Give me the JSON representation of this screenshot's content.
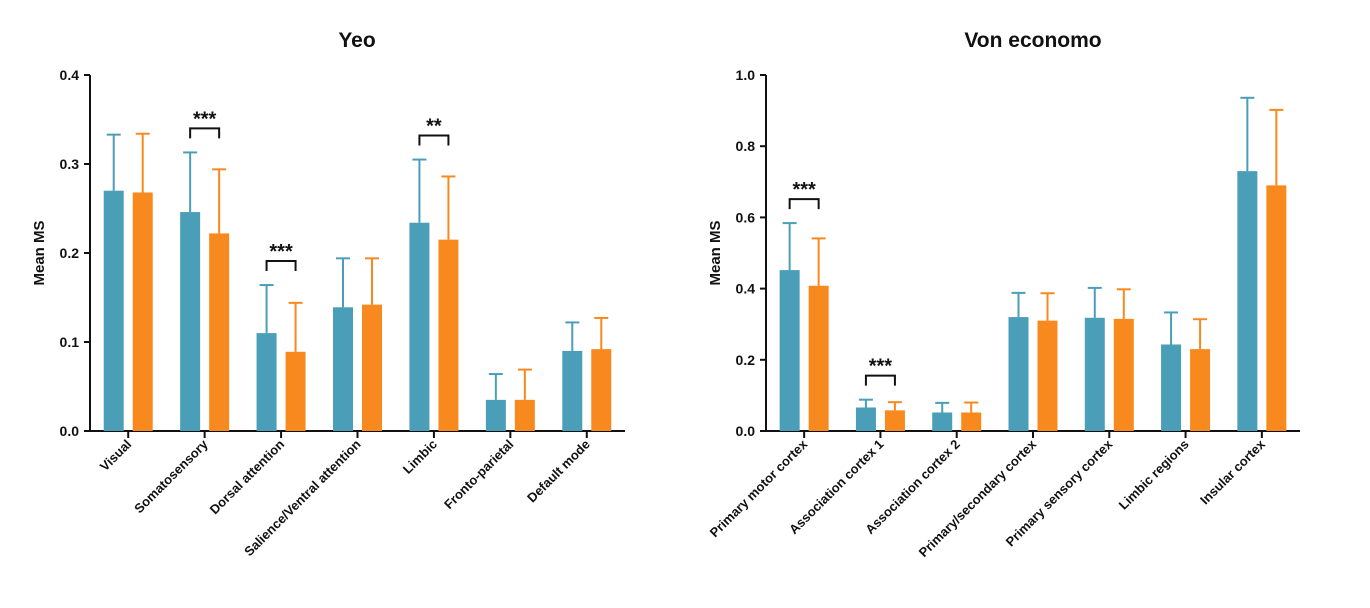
{
  "chart_data": [
    {
      "type": "bar",
      "title": "Yeo",
      "ylabel": "Mean MS",
      "ylim": [
        0,
        0.4
      ],
      "yticks": [
        "0.0",
        "0.1",
        "0.2",
        "0.3",
        "0.4"
      ],
      "categories": [
        "Visual",
        "Somatosensory",
        "Dorsal attention",
        "Salience/Ventral attention",
        "Limbic",
        "Fronto-parietal",
        "Default mode"
      ],
      "series": [
        {
          "color": "#4a9eb8",
          "values": [
            0.27,
            0.246,
            0.11,
            0.139,
            0.234,
            0.035,
            0.09
          ],
          "errors": [
            0.063,
            0.067,
            0.054,
            0.055,
            0.071,
            0.029,
            0.032
          ]
        },
        {
          "color": "#f7891f",
          "values": [
            0.268,
            0.222,
            0.089,
            0.142,
            0.215,
            0.035,
            0.092
          ],
          "errors": [
            0.066,
            0.072,
            0.055,
            0.052,
            0.071,
            0.034,
            0.035
          ]
        }
      ],
      "significance": [
        {
          "category_index": 1,
          "label": "***"
        },
        {
          "category_index": 2,
          "label": "***"
        },
        {
          "category_index": 4,
          "label": "**"
        }
      ]
    },
    {
      "type": "bar",
      "title": "Von economo",
      "ylabel": "Mean MS",
      "ylim": [
        0,
        1.0
      ],
      "yticks": [
        "0.0",
        "0.2",
        "0.4",
        "0.6",
        "0.8",
        "1.0"
      ],
      "categories": [
        "Primary motor cortex",
        "Association cortex 1",
        "Association cortex 2",
        "Primary/secondary cortex",
        "Primary sensory cortex",
        "Limbic regions",
        "Insular cortex"
      ],
      "series": [
        {
          "color": "#4a9eb8",
          "values": [
            0.452,
            0.066,
            0.052,
            0.32,
            0.318,
            0.243,
            0.73
          ],
          "errors": [
            0.132,
            0.022,
            0.027,
            0.068,
            0.084,
            0.09,
            0.206
          ]
        },
        {
          "color": "#f7891f",
          "values": [
            0.408,
            0.058,
            0.052,
            0.31,
            0.315,
            0.23,
            0.69
          ],
          "errors": [
            0.133,
            0.023,
            0.028,
            0.077,
            0.083,
            0.084,
            0.212
          ]
        }
      ],
      "significance": [
        {
          "category_index": 0,
          "label": "***"
        },
        {
          "category_index": 1,
          "label": "***"
        }
      ]
    }
  ]
}
